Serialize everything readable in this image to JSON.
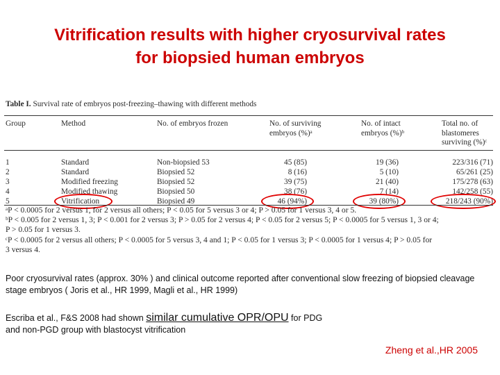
{
  "title": {
    "line1": "Vitrification results with higher cryosurvival rates",
    "line2": "for biopsied human embryos"
  },
  "table": {
    "caption_label": "Table I.",
    "caption_text": "Survival rate of embryos post-freezing–thawing with different methods",
    "headers": {
      "group": "Group",
      "method": "Method",
      "frozen": "No. of embryos frozen",
      "surviving": [
        "No. of surviving",
        "embryos (%)ᵃ"
      ],
      "intact": [
        "No. of intact",
        "embryos (%)ᵇ"
      ],
      "blastomeres": [
        "Total no. of",
        "blastomeres",
        "surviving (%)ᶜ"
      ]
    },
    "rows": [
      {
        "group": "1",
        "method": "Standard",
        "frozen": "Non-biopsied 53",
        "surviving": "45 (85)",
        "intact": "19 (36)",
        "blastomeres": "223/316 (71)"
      },
      {
        "group": "2",
        "method": "Standard",
        "frozen": "Biopsied 52",
        "surviving": "8 (16)",
        "intact": "5 (10)",
        "blastomeres": "65/261 (25)"
      },
      {
        "group": "3",
        "method": "Modified freezing",
        "frozen": "Biopsied 52",
        "surviving": "39 (75)",
        "intact": "21 (40)",
        "blastomeres": "175/278 (63)"
      },
      {
        "group": "4",
        "method": "Modified thawing",
        "frozen": "Biopsied 50",
        "surviving": "38 (76)",
        "intact": "7 (14)",
        "blastomeres": "142/258 (55)"
      },
      {
        "group": "5",
        "method": "Vitrification",
        "frozen": "Biopsied 49",
        "surviving": "46 (94%)",
        "intact": "39 (80%)",
        "blastomeres": "218/243 (90%)"
      }
    ],
    "footnotes": [
      "ᵃP < 0.0005 for 2 versus 1, for 2 versus all others; P < 0.05 for 5 versus 3 or 4; P > 0.05 for 1 versus 3, 4 or 5.",
      "ᵇP < 0.005 for 2 versus 1, 3; P < 0.001 for 2 versus 3; P > 0.05 for 2 versus 4; P < 0.05 for 2 versus 5; P < 0.0005 for 5 versus 1, 3 or 4;",
      "P > 0.05 for 1 versus 3.",
      "ᶜP < 0.0005 for 2 versus all others; P < 0.0005 for 5 versus 3, 4 and 1; P < 0.05 for 1 versus 3; P < 0.0005 for 1 versus 4; P > 0.05 for",
      "3 versus 4."
    ]
  },
  "paragraph1": "Poor cryosurvival rates (approx. 30% ) and clinical outcome reported after conventional slow freezing of biopsied cleavage stage embryos ( Joris et al., HR 1999, Magli et al., HR 1999)",
  "paragraph2": {
    "prefix": "Escriba et al., F&S 2008 had shown ",
    "emphasis": "similar cumulative OPR/OPU",
    "suffix": " for PDG",
    "line2": "and non-PGD group with blastocyst vitrification"
  },
  "citation": "Zheng et al.,HR 2005",
  "colors": {
    "title": "#cc0000",
    "highlight_circle": "#e00000",
    "citation": "#cc0000"
  }
}
